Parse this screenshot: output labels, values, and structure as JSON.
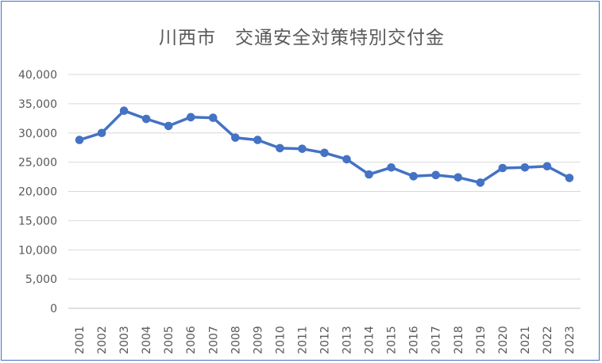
{
  "chart_data": {
    "type": "line",
    "title": "川西市　交通安全対策特別交付金",
    "xlabel": "",
    "ylabel": "",
    "categories": [
      "2001",
      "2002",
      "2003",
      "2004",
      "2005",
      "2006",
      "2007",
      "2008",
      "2009",
      "2010",
      "2011",
      "2012",
      "2013",
      "2014",
      "2015",
      "2016",
      "2017",
      "2018",
      "2019",
      "2020",
      "2021",
      "2022",
      "2023"
    ],
    "series": [
      {
        "values": [
          28800,
          30000,
          33800,
          32400,
          31200,
          32700,
          32600,
          29200,
          28800,
          27400,
          27300,
          26600,
          25500,
          22900,
          24100,
          22600,
          22800,
          22400,
          21500,
          24000,
          24100,
          24300,
          22300
        ],
        "color": "#4472c4"
      }
    ],
    "ylim": [
      0,
      40000
    ],
    "yticks": [
      0,
      5000,
      10000,
      15000,
      20000,
      25000,
      30000,
      35000,
      40000
    ],
    "ytick_labels": [
      "0",
      "5,000",
      "10,000",
      "15,000",
      "20,000",
      "25,000",
      "30,000",
      "35,000",
      "40,000"
    ],
    "grid": true,
    "legend": "none",
    "gridline_color": "#d9d9d9",
    "axis_line_color": "#bfbfbf"
  }
}
